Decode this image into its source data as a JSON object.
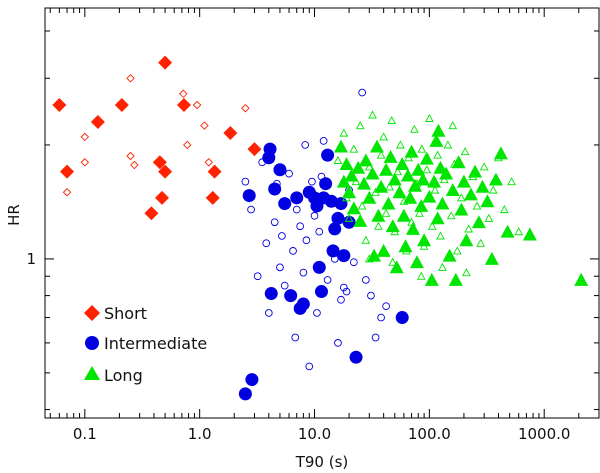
{
  "chart_data": {
    "type": "scatter",
    "title": "",
    "xlabel": "T90 (s)",
    "ylabel": "HR",
    "xscale": "log",
    "yscale": "log",
    "xlim": [
      0.045,
      3000
    ],
    "ylim": [
      0.38,
      4.6
    ],
    "x_tick_labels": [
      {
        "value": 0.1,
        "label": "0.1"
      },
      {
        "value": 1,
        "label": "1.0"
      },
      {
        "value": 10,
        "label": "10.0"
      },
      {
        "value": 100,
        "label": "100.0"
      },
      {
        "value": 1000,
        "label": "1000.0"
      }
    ],
    "y_tick_labels": [
      {
        "value": 1,
        "label": "1"
      }
    ],
    "legend": {
      "position": "bottom-left"
    },
    "colors": {
      "short": "#ff2200",
      "intermediate": "#0000e0",
      "long": "#00e600",
      "axis": "#000000"
    },
    "series": [
      {
        "name": "Short",
        "marker": "diamond",
        "fill": "filled",
        "points": [
          {
            "x": 0.06,
            "y": 2.55
          },
          {
            "x": 0.07,
            "y": 1.7
          },
          {
            "x": 0.13,
            "y": 2.3
          },
          {
            "x": 0.21,
            "y": 2.55
          },
          {
            "x": 0.38,
            "y": 1.32
          },
          {
            "x": 0.45,
            "y": 1.8
          },
          {
            "x": 0.47,
            "y": 1.45
          },
          {
            "x": 0.5,
            "y": 3.3
          },
          {
            "x": 0.5,
            "y": 1.7
          },
          {
            "x": 0.73,
            "y": 2.55
          },
          {
            "x": 1.3,
            "y": 1.45
          },
          {
            "x": 1.35,
            "y": 1.7
          },
          {
            "x": 1.85,
            "y": 2.15
          },
          {
            "x": 3.0,
            "y": 1.95
          }
        ]
      },
      {
        "name": "Short",
        "marker": "diamond",
        "fill": "open",
        "points": [
          {
            "x": 0.07,
            "y": 1.5
          },
          {
            "x": 0.1,
            "y": 2.1
          },
          {
            "x": 0.1,
            "y": 1.8
          },
          {
            "x": 0.25,
            "y": 3.0
          },
          {
            "x": 0.25,
            "y": 1.87
          },
          {
            "x": 0.27,
            "y": 1.77
          },
          {
            "x": 0.72,
            "y": 2.73
          },
          {
            "x": 0.78,
            "y": 2.0
          },
          {
            "x": 0.95,
            "y": 2.55
          },
          {
            "x": 1.1,
            "y": 2.25
          },
          {
            "x": 1.2,
            "y": 1.8
          },
          {
            "x": 2.5,
            "y": 2.5
          }
        ]
      },
      {
        "name": "Intermediate",
        "marker": "circle",
        "fill": "filled",
        "points": [
          {
            "x": 2.5,
            "y": 0.44
          },
          {
            "x": 2.7,
            "y": 1.47
          },
          {
            "x": 2.85,
            "y": 0.48
          },
          {
            "x": 4.0,
            "y": 1.85
          },
          {
            "x": 4.1,
            "y": 1.95
          },
          {
            "x": 4.2,
            "y": 0.81
          },
          {
            "x": 4.5,
            "y": 1.53
          },
          {
            "x": 5.0,
            "y": 1.72
          },
          {
            "x": 5.5,
            "y": 1.4
          },
          {
            "x": 6.2,
            "y": 0.8
          },
          {
            "x": 7.0,
            "y": 1.45
          },
          {
            "x": 7.5,
            "y": 0.74
          },
          {
            "x": 8.0,
            "y": 0.76
          },
          {
            "x": 9.0,
            "y": 1.5
          },
          {
            "x": 10.0,
            "y": 1.45
          },
          {
            "x": 10.5,
            "y": 1.38
          },
          {
            "x": 11.0,
            "y": 0.95
          },
          {
            "x": 11.5,
            "y": 0.82
          },
          {
            "x": 12.0,
            "y": 1.45
          },
          {
            "x": 12.5,
            "y": 1.58
          },
          {
            "x": 13.0,
            "y": 1.88
          },
          {
            "x": 14.0,
            "y": 1.42
          },
          {
            "x": 14.5,
            "y": 1.05
          },
          {
            "x": 15.0,
            "y": 1.2
          },
          {
            "x": 16.0,
            "y": 1.28
          },
          {
            "x": 17.0,
            "y": 1.4
          },
          {
            "x": 18.0,
            "y": 1.02
          },
          {
            "x": 20.0,
            "y": 1.25
          },
          {
            "x": 23.0,
            "y": 0.55
          },
          {
            "x": 58.0,
            "y": 0.7
          }
        ]
      },
      {
        "name": "Intermediate",
        "marker": "circle",
        "fill": "open",
        "points": [
          {
            "x": 2.5,
            "y": 1.6
          },
          {
            "x": 2.8,
            "y": 1.35
          },
          {
            "x": 3.2,
            "y": 0.9
          },
          {
            "x": 3.5,
            "y": 1.8
          },
          {
            "x": 3.8,
            "y": 1.1
          },
          {
            "x": 4.0,
            "y": 0.72
          },
          {
            "x": 4.5,
            "y": 1.25
          },
          {
            "x": 4.7,
            "y": 1.58
          },
          {
            "x": 5.0,
            "y": 0.95
          },
          {
            "x": 5.2,
            "y": 1.15
          },
          {
            "x": 5.5,
            "y": 0.85
          },
          {
            "x": 6.0,
            "y": 1.68
          },
          {
            "x": 6.5,
            "y": 1.05
          },
          {
            "x": 6.8,
            "y": 0.62
          },
          {
            "x": 7.0,
            "y": 1.35
          },
          {
            "x": 7.5,
            "y": 1.22
          },
          {
            "x": 8.0,
            "y": 0.92
          },
          {
            "x": 8.3,
            "y": 2.0
          },
          {
            "x": 8.5,
            "y": 1.12
          },
          {
            "x": 9.0,
            "y": 0.52
          },
          {
            "x": 9.5,
            "y": 1.6
          },
          {
            "x": 10.0,
            "y": 1.3
          },
          {
            "x": 10.5,
            "y": 0.72
          },
          {
            "x": 11.0,
            "y": 1.18
          },
          {
            "x": 11.5,
            "y": 1.65
          },
          {
            "x": 12.0,
            "y": 2.05
          },
          {
            "x": 13.0,
            "y": 0.88
          },
          {
            "x": 15.0,
            "y": 1.0
          },
          {
            "x": 16.0,
            "y": 0.6
          },
          {
            "x": 17.0,
            "y": 0.78
          },
          {
            "x": 18.0,
            "y": 0.84
          },
          {
            "x": 19.0,
            "y": 0.82
          },
          {
            "x": 20.0,
            "y": 1.52
          },
          {
            "x": 22.0,
            "y": 0.98
          },
          {
            "x": 26.0,
            "y": 2.75
          },
          {
            "x": 28.0,
            "y": 0.88
          },
          {
            "x": 31.0,
            "y": 0.8
          },
          {
            "x": 34.0,
            "y": 0.62
          },
          {
            "x": 38.0,
            "y": 0.7
          },
          {
            "x": 42.0,
            "y": 0.75
          }
        ]
      },
      {
        "name": "Long",
        "marker": "triangle",
        "fill": "filled",
        "points": [
          {
            "x": 17.0,
            "y": 1.98
          },
          {
            "x": 18.0,
            "y": 1.6
          },
          {
            "x": 19.0,
            "y": 1.78
          },
          {
            "x": 20.0,
            "y": 1.5
          },
          {
            "x": 21.0,
            "y": 1.66
          },
          {
            "x": 22.0,
            "y": 1.36
          },
          {
            "x": 24.0,
            "y": 1.74
          },
          {
            "x": 25.0,
            "y": 1.26
          },
          {
            "x": 27.0,
            "y": 1.58
          },
          {
            "x": 28.0,
            "y": 1.82
          },
          {
            "x": 30.0,
            "y": 1.45
          },
          {
            "x": 32.0,
            "y": 1.68
          },
          {
            "x": 33.0,
            "y": 1.02
          },
          {
            "x": 35.0,
            "y": 1.98
          },
          {
            "x": 36.0,
            "y": 1.3
          },
          {
            "x": 38.0,
            "y": 1.55
          },
          {
            "x": 40.0,
            "y": 1.05
          },
          {
            "x": 42.0,
            "y": 1.72
          },
          {
            "x": 44.0,
            "y": 1.4
          },
          {
            "x": 46.0,
            "y": 1.86
          },
          {
            "x": 48.0,
            "y": 1.22
          },
          {
            "x": 50.0,
            "y": 1.62
          },
          {
            "x": 52.0,
            "y": 0.95
          },
          {
            "x": 55.0,
            "y": 1.5
          },
          {
            "x": 58.0,
            "y": 1.78
          },
          {
            "x": 60.0,
            "y": 1.3
          },
          {
            "x": 62.0,
            "y": 1.08
          },
          {
            "x": 65.0,
            "y": 1.66
          },
          {
            "x": 68.0,
            "y": 1.45
          },
          {
            "x": 70.0,
            "y": 1.92
          },
          {
            "x": 72.0,
            "y": 1.2
          },
          {
            "x": 75.0,
            "y": 1.56
          },
          {
            "x": 78.0,
            "y": 0.98
          },
          {
            "x": 80.0,
            "y": 1.72
          },
          {
            "x": 85.0,
            "y": 1.38
          },
          {
            "x": 88.0,
            "y": 1.62
          },
          {
            "x": 90.0,
            "y": 1.12
          },
          {
            "x": 95.0,
            "y": 1.84
          },
          {
            "x": 100.0,
            "y": 1.46
          },
          {
            "x": 105.0,
            "y": 0.88
          },
          {
            "x": 110.0,
            "y": 1.6
          },
          {
            "x": 115.0,
            "y": 2.05
          },
          {
            "x": 118.0,
            "y": 1.28
          },
          {
            "x": 120.0,
            "y": 2.18
          },
          {
            "x": 125.0,
            "y": 1.74
          },
          {
            "x": 130.0,
            "y": 1.4
          },
          {
            "x": 140.0,
            "y": 1.68
          },
          {
            "x": 150.0,
            "y": 1.02
          },
          {
            "x": 160.0,
            "y": 1.52
          },
          {
            "x": 170.0,
            "y": 0.88
          },
          {
            "x": 180.0,
            "y": 1.8
          },
          {
            "x": 190.0,
            "y": 1.35
          },
          {
            "x": 200.0,
            "y": 1.6
          },
          {
            "x": 210.0,
            "y": 1.12
          },
          {
            "x": 230.0,
            "y": 1.48
          },
          {
            "x": 250.0,
            "y": 1.7
          },
          {
            "x": 270.0,
            "y": 1.25
          },
          {
            "x": 290.0,
            "y": 1.55
          },
          {
            "x": 320.0,
            "y": 1.42
          },
          {
            "x": 350.0,
            "y": 1.0
          },
          {
            "x": 380.0,
            "y": 1.62
          },
          {
            "x": 420.0,
            "y": 1.9
          },
          {
            "x": 480.0,
            "y": 1.18
          },
          {
            "x": 750.0,
            "y": 1.16
          },
          {
            "x": 2100.0,
            "y": 0.88
          }
        ]
      },
      {
        "name": "Long",
        "marker": "triangle",
        "fill": "open",
        "points": [
          {
            "x": 16.0,
            "y": 1.82
          },
          {
            "x": 18.0,
            "y": 2.15
          },
          {
            "x": 19.0,
            "y": 1.45
          },
          {
            "x": 20.0,
            "y": 1.28
          },
          {
            "x": 22.0,
            "y": 1.95
          },
          {
            "x": 23.0,
            "y": 1.6
          },
          {
            "x": 25.0,
            "y": 2.25
          },
          {
            "x": 26.0,
            "y": 1.38
          },
          {
            "x": 28.0,
            "y": 1.12
          },
          {
            "x": 30.0,
            "y": 1.75
          },
          {
            "x": 32.0,
            "y": 2.4
          },
          {
            "x": 34.0,
            "y": 1.5
          },
          {
            "x": 36.0,
            "y": 1.22
          },
          {
            "x": 38.0,
            "y": 1.88
          },
          {
            "x": 40.0,
            "y": 2.1
          },
          {
            "x": 42.0,
            "y": 1.32
          },
          {
            "x": 45.0,
            "y": 1.55
          },
          {
            "x": 47.0,
            "y": 2.32
          },
          {
            "x": 50.0,
            "y": 1.18
          },
          {
            "x": 53.0,
            "y": 1.7
          },
          {
            "x": 56.0,
            "y": 2.0
          },
          {
            "x": 60.0,
            "y": 1.42
          },
          {
            "x": 63.0,
            "y": 1.05
          },
          {
            "x": 66.0,
            "y": 1.85
          },
          {
            "x": 70.0,
            "y": 1.25
          },
          {
            "x": 74.0,
            "y": 2.2
          },
          {
            "x": 78.0,
            "y": 1.58
          },
          {
            "x": 82.0,
            "y": 1.32
          },
          {
            "x": 86.0,
            "y": 1.95
          },
          {
            "x": 90.0,
            "y": 1.08
          },
          {
            "x": 95.0,
            "y": 1.72
          },
          {
            "x": 100.0,
            "y": 2.35
          },
          {
            "x": 106.0,
            "y": 1.22
          },
          {
            "x": 112.0,
            "y": 1.52
          },
          {
            "x": 118.0,
            "y": 1.88
          },
          {
            "x": 125.0,
            "y": 1.15
          },
          {
            "x": 135.0,
            "y": 1.62
          },
          {
            "x": 145.0,
            "y": 2.0
          },
          {
            "x": 155.0,
            "y": 1.3
          },
          {
            "x": 165.0,
            "y": 1.78
          },
          {
            "x": 175.0,
            "y": 1.05
          },
          {
            "x": 190.0,
            "y": 1.45
          },
          {
            "x": 205.0,
            "y": 1.92
          },
          {
            "x": 220.0,
            "y": 1.2
          },
          {
            "x": 240.0,
            "y": 1.65
          },
          {
            "x": 260.0,
            "y": 1.38
          },
          {
            "x": 280.0,
            "y": 1.1
          },
          {
            "x": 300.0,
            "y": 1.75
          },
          {
            "x": 330.0,
            "y": 1.28
          },
          {
            "x": 360.0,
            "y": 1.52
          },
          {
            "x": 400.0,
            "y": 1.85
          },
          {
            "x": 450.0,
            "y": 1.35
          },
          {
            "x": 520.0,
            "y": 1.6
          },
          {
            "x": 600.0,
            "y": 1.18
          },
          {
            "x": 130.0,
            "y": 0.95
          },
          {
            "x": 210.0,
            "y": 0.92
          },
          {
            "x": 48.0,
            "y": 0.98
          },
          {
            "x": 85.0,
            "y": 0.9
          },
          {
            "x": 30.0,
            "y": 1.0
          },
          {
            "x": 160.0,
            "y": 2.25
          }
        ]
      }
    ]
  }
}
